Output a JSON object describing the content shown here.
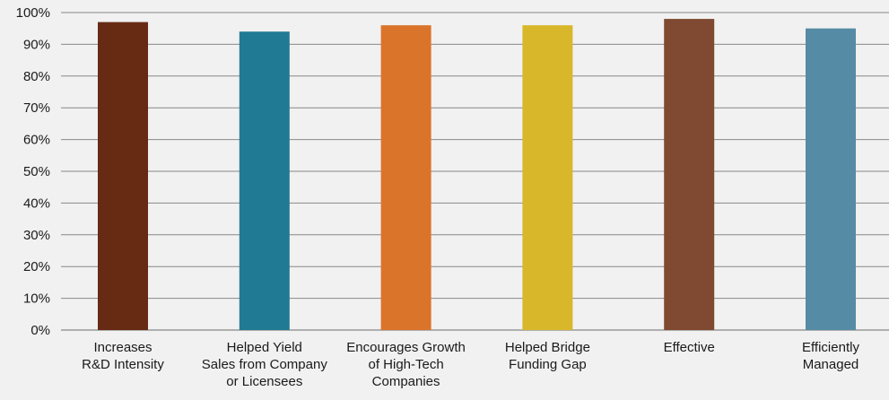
{
  "chart_data": {
    "type": "bar",
    "title": "",
    "xlabel": "",
    "ylabel": "",
    "ylim": [
      0,
      100
    ],
    "yticks": [
      "0%",
      "10%",
      "20%",
      "30%",
      "40%",
      "50%",
      "60%",
      "70%",
      "80%",
      "90%",
      "100%"
    ],
    "grid": true,
    "legend": "none",
    "categories": [
      [
        "Increases",
        "R&D Intensity"
      ],
      [
        "Helped Yield",
        "Sales from Company",
        "or Licensees"
      ],
      [
        "Encourages Growth",
        "of High-Tech",
        "Companies"
      ],
      [
        "Helped Bridge",
        "Funding Gap"
      ],
      [
        "Effective"
      ],
      [
        "Efficiently",
        "Managed"
      ]
    ],
    "values": [
      97,
      94,
      96,
      96,
      98,
      95
    ],
    "colors": [
      "#672b14",
      "#217a94",
      "#db742b",
      "#d9b72b",
      "#7f4a31",
      "#568ba5"
    ],
    "gridline_color": "#888888",
    "text_color": "#1a1a1a"
  }
}
